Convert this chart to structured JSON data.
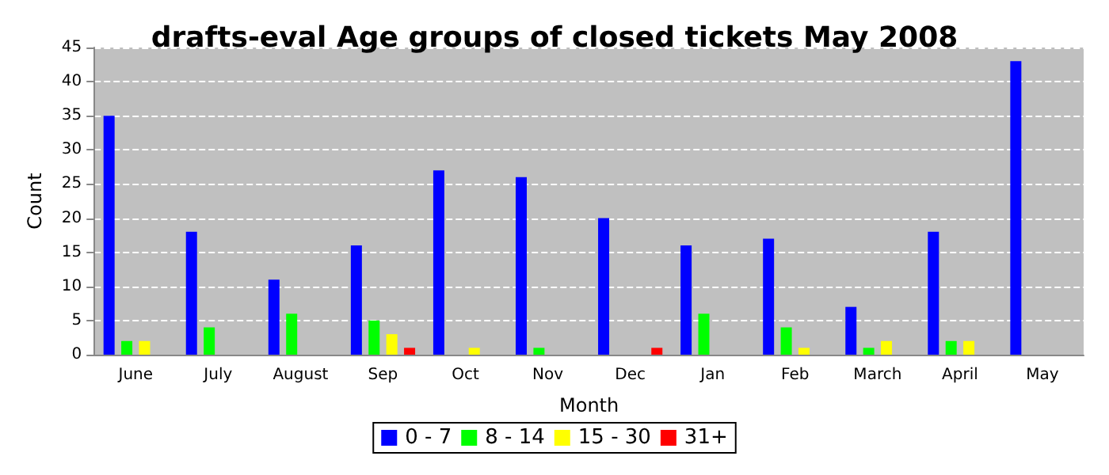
{
  "chart_data": {
    "type": "bar",
    "title": "drafts-eval Age groups of closed tickets May 2008",
    "xlabel": "Month",
    "ylabel": "Count",
    "categories": [
      "June",
      "July",
      "August",
      "Sep",
      "Oct",
      "Nov",
      "Dec",
      "Jan",
      "Feb",
      "March",
      "April",
      "May"
    ],
    "series": [
      {
        "name": "0 - 7",
        "color": "#0000ff",
        "values": [
          35,
          18,
          11,
          16,
          27,
          26,
          20,
          16,
          17,
          7,
          18,
          43
        ]
      },
      {
        "name": "8 - 14",
        "color": "#00ff00",
        "values": [
          2,
          4,
          6,
          5,
          0,
          1,
          0,
          6,
          4,
          1,
          2,
          0
        ]
      },
      {
        "name": "15 - 30",
        "color": "#ffff00",
        "values": [
          2,
          0,
          0,
          3,
          1,
          0,
          0,
          0,
          1,
          2,
          2,
          0
        ]
      },
      {
        "name": "31+",
        "color": "#ff0000",
        "values": [
          0,
          0,
          0,
          1,
          0,
          0,
          1,
          0,
          0,
          0,
          0,
          0
        ]
      }
    ],
    "ylim": [
      0,
      45
    ],
    "yticks": [
      0,
      5,
      10,
      15,
      20,
      25,
      30,
      35,
      40,
      45
    ],
    "grid": "y",
    "legend": "bottom"
  }
}
